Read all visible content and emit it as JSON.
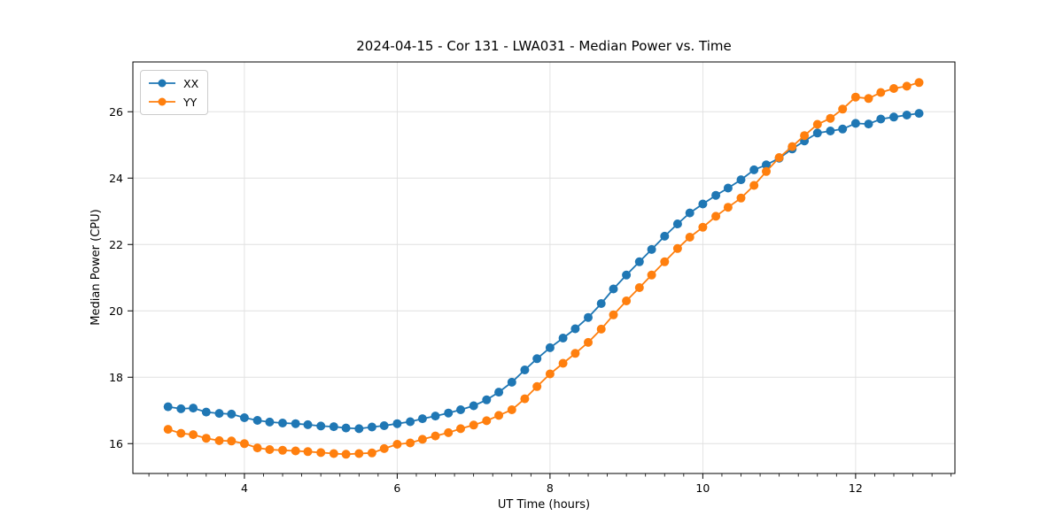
{
  "figure": {
    "background": "#ffffff",
    "spine_color": "#000000",
    "grid_color": "#e0e0e0"
  },
  "chart_data": {
    "type": "line",
    "title": "2024-04-15 - Cor 131 - LWA031 - Median Power vs. Time",
    "xlabel": "UT Time (hours)",
    "ylabel": "Median Power (CPU)",
    "xlim": [
      2.54,
      13.3
    ],
    "ylim": [
      15.1,
      27.5
    ],
    "x_ticks": [
      4,
      6,
      8,
      10,
      12
    ],
    "y_ticks": [
      16,
      18,
      20,
      22,
      24,
      26
    ],
    "x_minor_tick_step": 0.25,
    "grid": true,
    "legend_position": "upper left",
    "marker": "o",
    "x": [
      3.0,
      3.17,
      3.33,
      3.5,
      3.67,
      3.83,
      4.0,
      4.17,
      4.33,
      4.5,
      4.67,
      4.83,
      5.0,
      5.17,
      5.33,
      5.5,
      5.67,
      5.83,
      6.0,
      6.17,
      6.33,
      6.5,
      6.67,
      6.83,
      7.0,
      7.17,
      7.33,
      7.5,
      7.67,
      7.83,
      8.0,
      8.17,
      8.33,
      8.5,
      8.67,
      8.83,
      9.0,
      9.17,
      9.33,
      9.5,
      9.67,
      9.83,
      10.0,
      10.17,
      10.33,
      10.5,
      10.67,
      10.83,
      11.0,
      11.17,
      11.33,
      11.5,
      11.67,
      11.83,
      12.0,
      12.17,
      12.33,
      12.5,
      12.67,
      12.83
    ],
    "series": [
      {
        "name": "XX",
        "color": "#1f77b4",
        "values": [
          17.11,
          17.05,
          17.07,
          16.95,
          16.91,
          16.89,
          16.78,
          16.7,
          16.65,
          16.62,
          16.6,
          16.57,
          16.53,
          16.51,
          16.47,
          16.45,
          16.5,
          16.54,
          16.6,
          16.66,
          16.75,
          16.83,
          16.92,
          17.02,
          17.14,
          17.32,
          17.55,
          17.85,
          18.22,
          18.56,
          18.89,
          19.18,
          19.46,
          19.8,
          20.22,
          20.66,
          21.08,
          21.48,
          21.85,
          22.25,
          22.62,
          22.95,
          23.22,
          23.48,
          23.7,
          23.95,
          24.25,
          24.4,
          24.6,
          24.88,
          25.12,
          25.36,
          25.42,
          25.48,
          25.65,
          25.63,
          25.78,
          25.84,
          25.9,
          25.95
        ]
      },
      {
        "name": "YY",
        "color": "#ff7f0e",
        "values": [
          16.43,
          16.31,
          16.27,
          16.16,
          16.09,
          16.08,
          16.0,
          15.87,
          15.82,
          15.8,
          15.78,
          15.76,
          15.73,
          15.7,
          15.68,
          15.7,
          15.72,
          15.85,
          15.98,
          16.02,
          16.13,
          16.23,
          16.33,
          16.45,
          16.56,
          16.69,
          16.85,
          17.02,
          17.35,
          17.72,
          18.1,
          18.42,
          18.72,
          19.05,
          19.45,
          19.88,
          20.3,
          20.7,
          21.08,
          21.48,
          21.88,
          22.22,
          22.52,
          22.85,
          23.12,
          23.4,
          23.78,
          24.2,
          24.62,
          24.95,
          25.28,
          25.62,
          25.8,
          26.08,
          26.44,
          26.4,
          26.58,
          26.7,
          26.77,
          26.88
        ]
      }
    ]
  }
}
